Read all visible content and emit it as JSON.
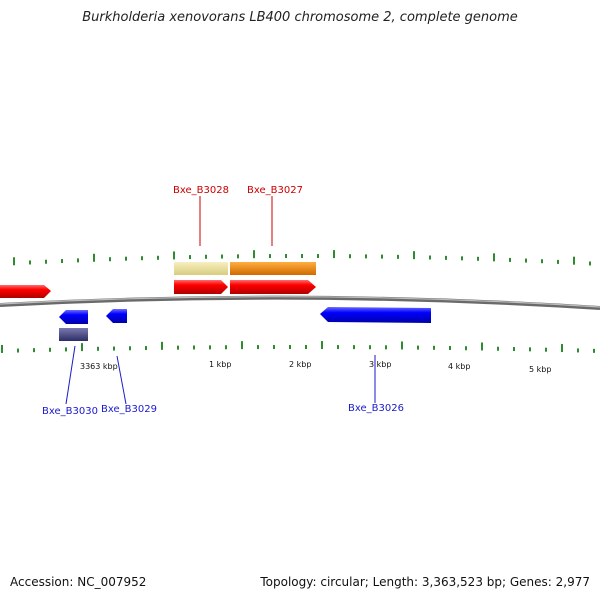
{
  "title": "Burkholderia xenovorans LB400 chromosome 2, complete genome",
  "accession": "Accession: NC_007952",
  "summary": "Topology: circular; Length: 3,363,523 bp; Genes: 2,977",
  "scale_labels": [
    "3363 kbp",
    "1 kbp",
    "2 kbp",
    "3 kbp",
    "4 kbp",
    "5 kbp"
  ],
  "gene_labels_top": [
    "Bxe_B3028",
    "Bxe_B3027"
  ],
  "gene_labels_bottom": [
    "Bxe_B3030",
    "Bxe_B3029",
    "Bxe_B3026"
  ],
  "colors": {
    "forward_cds": "#ff0000",
    "reverse_cds": "#0000ff",
    "light_feature": "#f0e6a0",
    "orange_feature": "#ff8c00",
    "dark_feature": "#4a4a8a",
    "backbone": "#888888",
    "tick": "#2e8b2e"
  }
}
